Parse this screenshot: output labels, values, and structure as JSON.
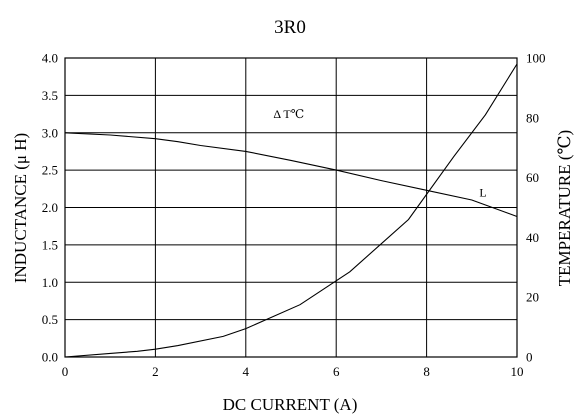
{
  "chart_data": {
    "type": "line",
    "title": "3R0",
    "xlabel": "DC CURRENT (A)",
    "ylabel": "INDUCTANCE (μ  H)",
    "y2label": "TEMPERATURE (℃)",
    "xlim": [
      0,
      10
    ],
    "ylim": [
      0,
      4.0
    ],
    "y2lim": [
      0,
      100
    ],
    "grid": true,
    "x_ticks": [
      "0",
      "2",
      "4",
      "6",
      "8",
      "10"
    ],
    "y_ticks": [
      "0.0",
      "0.5",
      "1.0",
      "1.5",
      "2.0",
      "2.5",
      "3.0",
      "3.5",
      "4.0"
    ],
    "y2_ticks": [
      "0",
      "20",
      "40",
      "60",
      "80",
      "100"
    ],
    "series": [
      {
        "name": "L",
        "axis": "left",
        "x": [
          0,
          1,
          2,
          2.5,
          3,
          4,
          5,
          6,
          7,
          8,
          9,
          10
        ],
        "y": [
          3.0,
          2.97,
          2.92,
          2.88,
          2.83,
          2.75,
          2.63,
          2.5,
          2.36,
          2.23,
          2.1,
          1.88
        ]
      },
      {
        "name": "Δ T℃",
        "axis": "right",
        "x": [
          0,
          1,
          1.6,
          2,
          2.5,
          3.5,
          4,
          5.2,
          6.3,
          7.6,
          8.6,
          9.3,
          10
        ],
        "y": [
          0,
          1.2,
          1.9,
          2.6,
          3.8,
          6.9,
          9.5,
          17.5,
          28.5,
          46,
          67,
          81,
          98
        ]
      }
    ],
    "annotations": [
      {
        "text": "Δ T℃",
        "x": 4.95,
        "y2": 80,
        "series": "Δ T℃"
      },
      {
        "text": "L",
        "x": 9.25,
        "y": 2.15,
        "series": "L"
      }
    ]
  }
}
